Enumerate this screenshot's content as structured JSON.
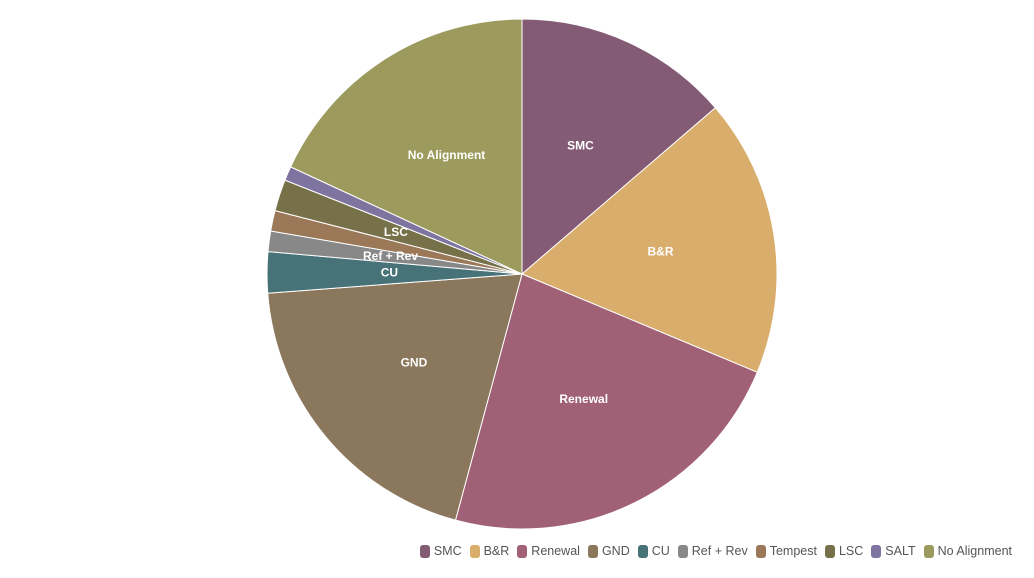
{
  "chart_data": {
    "type": "pie",
    "title": "",
    "legend_position": "bottom-right",
    "slices": [
      {
        "label": "SMC",
        "value": 13.7,
        "color": "#845b74",
        "show_label": true
      },
      {
        "label": "B&R",
        "value": 17.6,
        "color": "#d9ad6b",
        "show_label": true
      },
      {
        "label": "Renewal",
        "value": 22.9,
        "color": "#a06076",
        "show_label": true
      },
      {
        "label": "GND",
        "value": 19.6,
        "color": "#8b775c",
        "show_label": true
      },
      {
        "label": "CU",
        "value": 2.6,
        "color": "#477278",
        "show_label": true
      },
      {
        "label": "Ref + Rev",
        "value": 1.3,
        "color": "#888888",
        "show_label": true
      },
      {
        "label": "Tempest",
        "value": 1.3,
        "color": "#9a7858",
        "show_label": false
      },
      {
        "label": "LSC",
        "value": 2.0,
        "color": "#767149",
        "show_label": true
      },
      {
        "label": "SALT",
        "value": 0.9,
        "color": "#7d74a0",
        "show_label": false
      },
      {
        "label": "No Alignment",
        "value": 18.1,
        "color": "#9c9a5c",
        "show_label": true
      }
    ]
  }
}
